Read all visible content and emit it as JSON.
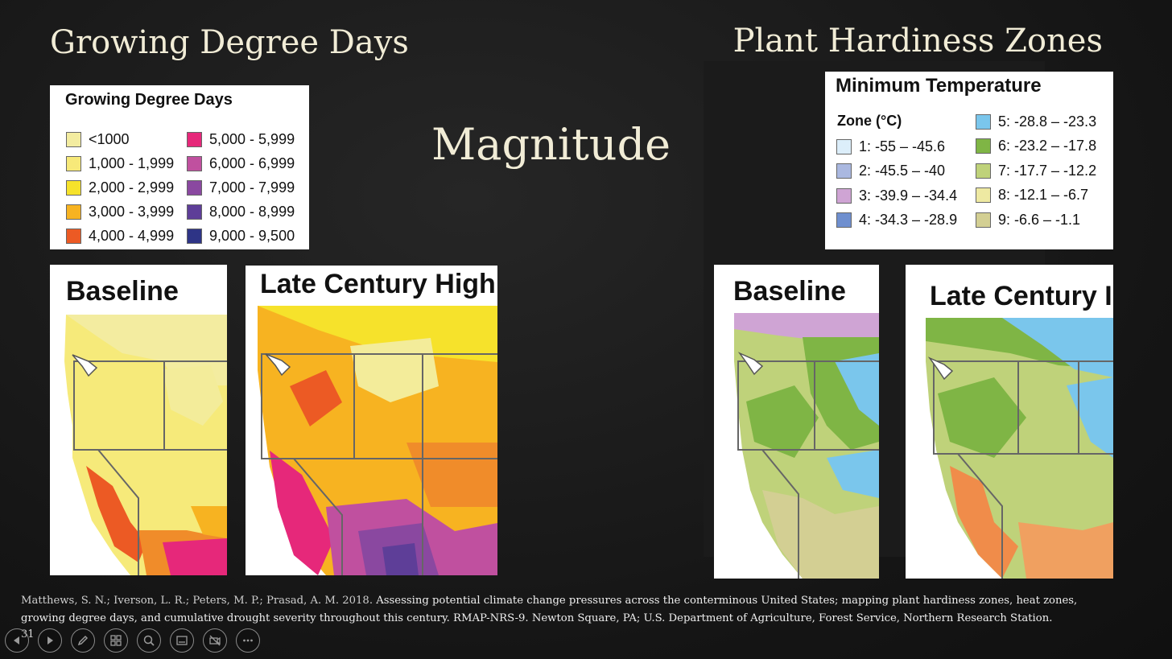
{
  "titles": {
    "gdd": "Growing Degree Days",
    "phz": "Plant Hardiness Zones",
    "magnitude": "Magnitude"
  },
  "legend_gdd": {
    "title": "Growing Degree Days",
    "items": [
      {
        "label": "<1000",
        "color": "#f3eca0"
      },
      {
        "label": "1,000 - 1,999",
        "color": "#f7e979"
      },
      {
        "label": "2,000 - 2,999",
        "color": "#f6e22b"
      },
      {
        "label": "3,000 - 3,999",
        "color": "#f7b321"
      },
      {
        "label": "4,000 - 4,999",
        "color": "#ec5a24"
      },
      {
        "label": "5,000 - 5,999",
        "color": "#e6287a"
      },
      {
        "label": "6,000 - 6,999",
        "color": "#c0509f"
      },
      {
        "label": "7,000 - 7,999",
        "color": "#8a48a0"
      },
      {
        "label": "8,000 - 8,999",
        "color": "#5e3e98"
      },
      {
        "label": "9,000 - 9,500",
        "color": "#2e3486"
      }
    ]
  },
  "legend_phz": {
    "title": "Minimum Temperature",
    "subtitle": "Zone (°C)",
    "items": [
      {
        "label": "1: -55 – -45.6",
        "color": "#dceefa"
      },
      {
        "label": "2: -45.5 – -40",
        "color": "#aab8e0"
      },
      {
        "label": "3: -39.9 – -34.4",
        "color": "#cfa4d4"
      },
      {
        "label": "4: -34.3 – -28.9",
        "color": "#6f8fcf"
      },
      {
        "label": "5: -28.8 – -23.3",
        "color": "#7ac6ec"
      },
      {
        "label": "6: -23.2 – -17.8",
        "color": "#7fb545"
      },
      {
        "label": "7: -17.7 – -12.2",
        "color": "#bfd27a"
      },
      {
        "label": "8: -12.1 – -6.7",
        "color": "#eee9a2"
      },
      {
        "label": "9: -6.6 – -1.1",
        "color": "#d3cf93"
      }
    ]
  },
  "maps": {
    "gdd_baseline": "Baseline",
    "gdd_late": "Late Century High",
    "phz_baseline": "Baseline",
    "phz_late": "Late Century I"
  },
  "citation": {
    "authors": "Matthews, S. N.; Iverson, L. R.; Peters, M. P.; Prasad, A. M. 2018.",
    "rest": "Assessing potential climate change pressures across the conterminous United States; mapping plant hardiness zones, heat zones, growing degree days, and cumulative drought severity throughout this century. RMAP-NRS-9. Newton Square, PA; U.S. Department of Agriculture, Forest Service, Northern Research Station."
  },
  "slide_number": "31",
  "toolbar": [
    "previous-slide-icon",
    "next-slide-icon",
    "pen-icon",
    "slides-grid-icon",
    "zoom-icon",
    "subtitles-icon",
    "camera-off-icon",
    "more-options-icon"
  ]
}
